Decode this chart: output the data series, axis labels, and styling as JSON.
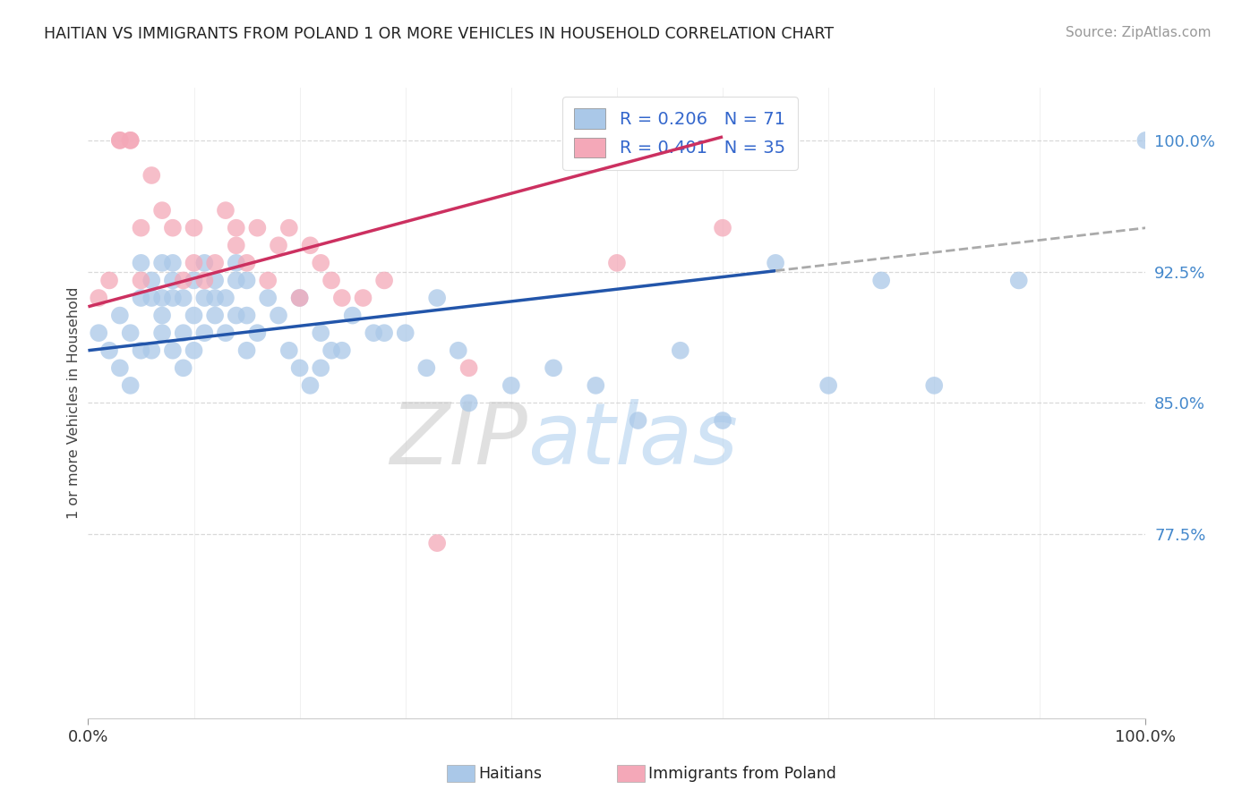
{
  "title": "HAITIAN VS IMMIGRANTS FROM POLAND 1 OR MORE VEHICLES IN HOUSEHOLD CORRELATION CHART",
  "source": "Source: ZipAtlas.com",
  "ylabel": "1 or more Vehicles in Household",
  "xlim": [
    0,
    100
  ],
  "ylim": [
    67,
    103
  ],
  "yticks": [
    77.5,
    85.0,
    92.5,
    100.0
  ],
  "blue_R": 0.206,
  "blue_N": 71,
  "pink_R": 0.401,
  "pink_N": 35,
  "blue_scatter_color": "#aac8e8",
  "blue_line_color": "#2255aa",
  "pink_scatter_color": "#f4a8b8",
  "pink_line_color": "#cc3060",
  "legend_label_blue": "Haitians",
  "legend_label_pink": "Immigrants from Poland",
  "watermark_zip": "ZIP",
  "watermark_atlas": "atlas",
  "background_color": "#ffffff",
  "grid_color": "#d0d0d0",
  "blue_x": [
    1,
    2,
    3,
    3,
    4,
    4,
    5,
    5,
    5,
    6,
    6,
    6,
    7,
    7,
    7,
    7,
    8,
    8,
    8,
    8,
    9,
    9,
    9,
    10,
    10,
    10,
    11,
    11,
    11,
    12,
    12,
    12,
    13,
    13,
    14,
    14,
    14,
    15,
    15,
    15,
    16,
    17,
    18,
    19,
    20,
    21,
    22,
    23,
    25,
    27,
    30,
    33,
    35,
    20,
    22,
    24,
    28,
    32,
    36,
    40,
    44,
    48,
    52,
    56,
    60,
    65,
    70,
    75,
    80,
    88,
    100
  ],
  "blue_y": [
    89,
    88,
    87,
    90,
    86,
    89,
    88,
    91,
    93,
    88,
    91,
    92,
    89,
    90,
    91,
    93,
    88,
    91,
    92,
    93,
    87,
    89,
    91,
    88,
    90,
    92,
    89,
    91,
    93,
    90,
    91,
    92,
    89,
    91,
    90,
    92,
    93,
    88,
    90,
    92,
    89,
    91,
    90,
    88,
    87,
    86,
    89,
    88,
    90,
    89,
    89,
    91,
    88,
    91,
    87,
    88,
    89,
    87,
    85,
    86,
    87,
    86,
    84,
    88,
    84,
    93,
    86,
    92,
    86,
    92,
    100
  ],
  "pink_x": [
    1,
    2,
    3,
    3,
    4,
    4,
    5,
    5,
    6,
    7,
    8,
    9,
    10,
    10,
    11,
    12,
    13,
    14,
    14,
    15,
    16,
    17,
    18,
    19,
    20,
    21,
    22,
    23,
    24,
    26,
    28,
    33,
    36,
    50,
    60
  ],
  "pink_y": [
    91,
    92,
    100,
    100,
    100,
    100,
    92,
    95,
    98,
    96,
    95,
    92,
    93,
    95,
    92,
    93,
    96,
    95,
    94,
    93,
    95,
    92,
    94,
    95,
    91,
    94,
    93,
    92,
    91,
    91,
    92,
    77,
    87,
    93,
    95
  ],
  "blue_line_x0": 0,
  "blue_line_y0": 88.0,
  "blue_line_x1": 100,
  "blue_line_y1": 95.0,
  "blue_solid_end": 65,
  "pink_line_x0": 0,
  "pink_line_y0": 90.5,
  "pink_line_x1": 60,
  "pink_line_y1": 100.2
}
